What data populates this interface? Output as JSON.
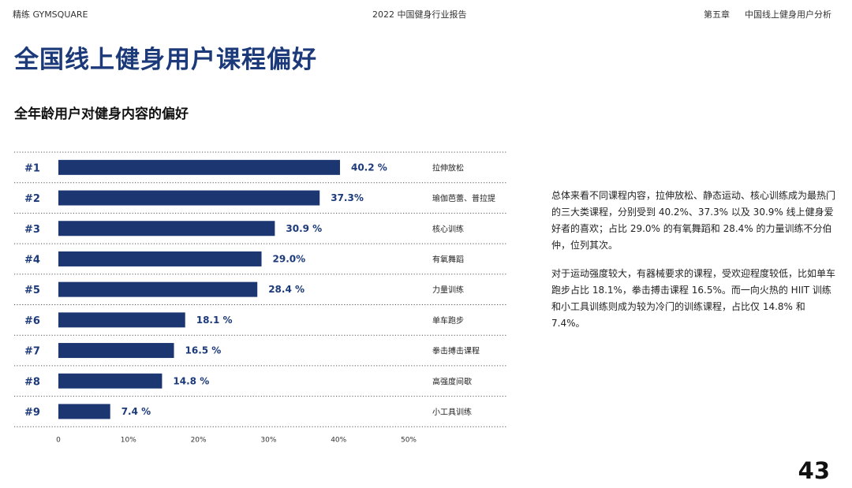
{
  "header": {
    "left": "精练 GYMSQUARE",
    "center": "2022 中国健身行业报告",
    "chapter": "第五章",
    "section": "中国线上健身用户分析"
  },
  "title": "全国线上健身用户课程偏好",
  "subtitle": "全年龄用户对健身内容的偏好",
  "chart_data": {
    "type": "bar",
    "orientation": "horizontal",
    "title": "全年龄用户对健身内容的偏好",
    "ranks": [
      "#1",
      "#2",
      "#3",
      "#4",
      "#5",
      "#6",
      "#7",
      "#8",
      "#9"
    ],
    "categories": [
      "拉伸放松",
      "瑜伽芭蕾、普拉提",
      "核心训练",
      "有氧舞蹈",
      "力量训练",
      "单车跑步",
      "拳击搏击课程",
      "高强度间歇",
      "小工具训练"
    ],
    "values": [
      40.2,
      37.3,
      30.9,
      29.0,
      28.4,
      18.1,
      16.5,
      14.8,
      7.4
    ],
    "value_labels": [
      "40.2 %",
      "37.3%",
      "30.9 %",
      "29.0%",
      "28.4 %",
      "18.1 %",
      "16.5  %",
      "14.8 %",
      "7.4 %"
    ],
    "x_ticks": [
      "0",
      "10%",
      "20%",
      "30%",
      "40%",
      "50%"
    ],
    "xlim": [
      0,
      50
    ],
    "grid": "dotted row separators",
    "bar_color": "#1c3672",
    "label_color": "#1c3a7a"
  },
  "summary": {
    "p1": "总体来看不同课程内容，拉伸放松、静态运动、核心训练成为最热门的三大类课程，分别受到 40.2%、37.3% 以及 30.9% 线上健身爱好者的喜欢；占比 29.0% 的有氧舞蹈和 28.4% 的力量训练不分伯仲，位列其次。",
    "p2": "对于运动强度较大，有器械要求的课程，受欢迎程度较低，比如单车跑步占比 18.1%，拳击搏击课程 16.5%。而一向火热的 HIIT 训练和小工具训练则成为较为冷门的训练课程，占比仅 14.8% 和 7.4%。"
  },
  "page_number": "43"
}
